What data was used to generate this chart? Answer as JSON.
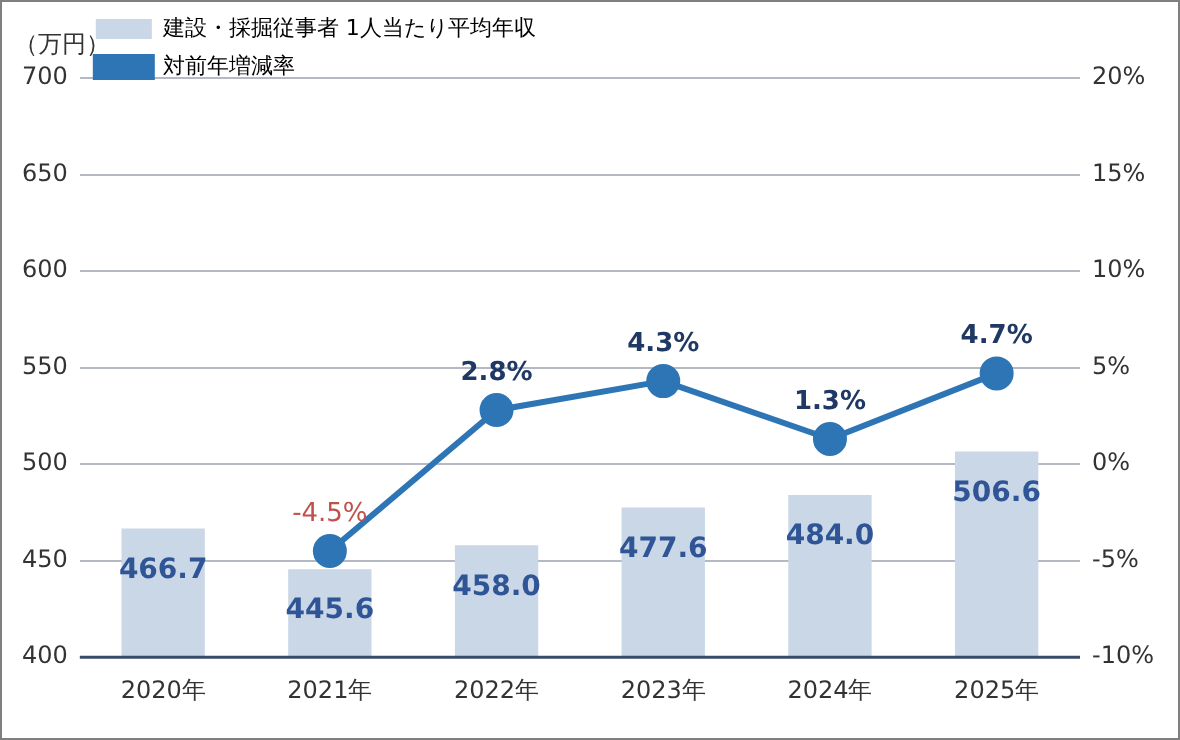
{
  "chart_data": {
    "type": "bar",
    "ylabel": "（万円）",
    "categories": [
      "2020年",
      "2021年",
      "2022年",
      "2023年",
      "2024年",
      "2025年"
    ],
    "series": [
      {
        "name": "建設・採掘従事者 1人当たり平均年収",
        "color": "#c9d7e6",
        "values": [
          466.7,
          445.6,
          458.0,
          477.6,
          484.0,
          506.6
        ],
        "value_labels": [
          "466.7",
          "445.6",
          "458.0",
          "477.6",
          "484.0",
          "506.6"
        ]
      },
      {
        "name": "対前年増減率",
        "type": "line",
        "axis": "y2",
        "color": "#2e75b6",
        "values": [
          null,
          -4.5,
          2.8,
          4.3,
          1.3,
          4.7
        ],
        "value_labels": [
          null,
          "-4.5%",
          "2.8%",
          "4.3%",
          "1.3%",
          "4.7%"
        ]
      }
    ],
    "ylim": [
      400,
      700
    ],
    "yticks": [
      400,
      450,
      500,
      550,
      600,
      650,
      700
    ],
    "y2lim": [
      -10,
      20
    ],
    "y2ticks": [
      {
        "value": -10,
        "label": "-10%"
      },
      {
        "value": -5,
        "label": "-5%"
      },
      {
        "value": 0,
        "label": "0%"
      },
      {
        "value": 5,
        "label": "5%"
      },
      {
        "value": 10,
        "label": "10%"
      },
      {
        "value": 15,
        "label": "15%"
      },
      {
        "value": 20,
        "label": "20%"
      }
    ],
    "grid": "y",
    "legend": "top left",
    "marker": "circle",
    "line_style": "solid"
  }
}
